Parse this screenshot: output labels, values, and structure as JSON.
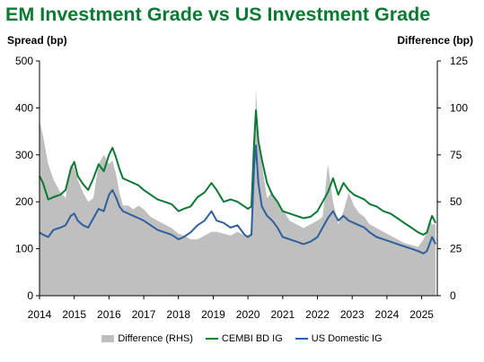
{
  "title": "EM Investment Grade vs US Investment Grade",
  "chart_data": {
    "type": "line",
    "title": "EM Investment Grade vs US Investment Grade",
    "ylabel": "Spread (bp)",
    "ylabel_right": "Difference (bp)",
    "ylim": [
      0,
      500
    ],
    "ylim_right": [
      0,
      125
    ],
    "yticks": [
      0,
      100,
      200,
      300,
      400,
      500
    ],
    "yticks_right": [
      0,
      25,
      50,
      75,
      100,
      125
    ],
    "xlim": [
      2014.0,
      2025.45
    ],
    "xtick_labels": [
      "2014",
      "2015",
      "2016",
      "2017",
      "2018",
      "2019",
      "2020",
      "2021",
      "2022",
      "2023",
      "2024",
      "2025"
    ],
    "grid": false,
    "legend_position": "bottom",
    "x": [
      2014.0,
      2014.1,
      2014.25,
      2014.4,
      2014.6,
      2014.75,
      2014.9,
      2015.0,
      2015.1,
      2015.25,
      2015.4,
      2015.55,
      2015.7,
      2015.85,
      2016.0,
      2016.1,
      2016.2,
      2016.3,
      2016.4,
      2016.55,
      2016.7,
      2016.85,
      2017.0,
      2017.2,
      2017.4,
      2017.6,
      2017.8,
      2018.0,
      2018.15,
      2018.35,
      2018.55,
      2018.75,
      2018.95,
      2019.1,
      2019.3,
      2019.5,
      2019.7,
      2019.9,
      2020.0,
      2020.1,
      2020.18,
      2020.23,
      2020.3,
      2020.4,
      2020.55,
      2020.7,
      2020.85,
      2021.0,
      2021.2,
      2021.4,
      2021.6,
      2021.8,
      2022.0,
      2022.15,
      2022.3,
      2022.45,
      2022.6,
      2022.75,
      2022.9,
      2023.05,
      2023.2,
      2023.35,
      2023.5,
      2023.7,
      2023.9,
      2024.1,
      2024.3,
      2024.5,
      2024.7,
      2024.9,
      2025.05,
      2025.15,
      2025.25,
      2025.3,
      2025.4
    ],
    "series": [
      {
        "name": "Difference (RHS)",
        "axis": "right",
        "color": "#bfbfbf",
        "values": [
          93,
          85,
          70,
          62,
          55,
          52,
          70,
          68,
          62,
          55,
          50,
          52,
          70,
          75,
          70,
          72,
          65,
          55,
          48,
          48,
          46,
          48,
          46,
          42,
          40,
          38,
          36,
          33,
          32,
          30,
          30,
          32,
          34,
          34,
          33,
          32,
          34,
          32,
          32,
          34,
          65,
          110,
          85,
          70,
          52,
          55,
          50,
          46,
          40,
          38,
          36,
          38,
          40,
          42,
          70,
          50,
          38,
          45,
          55,
          48,
          44,
          42,
          38,
          36,
          34,
          32,
          30,
          28,
          27,
          26,
          30,
          34,
          40,
          38,
          38
        ]
      },
      {
        "name": "CEMBI BD IG",
        "axis": "left",
        "color": "#0a7a33",
        "values": [
          255,
          240,
          205,
          210,
          215,
          225,
          270,
          285,
          255,
          238,
          225,
          250,
          280,
          265,
          300,
          315,
          295,
          270,
          250,
          245,
          240,
          235,
          225,
          215,
          205,
          200,
          195,
          180,
          185,
          190,
          210,
          220,
          240,
          225,
          200,
          205,
          200,
          190,
          185,
          190,
          330,
          395,
          330,
          290,
          240,
          215,
          200,
          180,
          175,
          170,
          165,
          168,
          180,
          200,
          220,
          250,
          215,
          240,
          225,
          215,
          210,
          205,
          195,
          190,
          180,
          175,
          165,
          155,
          145,
          135,
          130,
          135,
          160,
          170,
          155
        ]
      },
      {
        "name": "US Domestic IG",
        "axis": "left",
        "color": "#2e5f9e",
        "values": [
          135,
          130,
          125,
          140,
          145,
          150,
          170,
          175,
          160,
          150,
          145,
          165,
          185,
          180,
          215,
          225,
          210,
          190,
          180,
          175,
          170,
          165,
          160,
          150,
          140,
          135,
          130,
          120,
          125,
          135,
          150,
          160,
          180,
          160,
          155,
          145,
          150,
          130,
          125,
          130,
          280,
          320,
          240,
          190,
          170,
          160,
          145,
          125,
          120,
          115,
          110,
          115,
          125,
          145,
          165,
          180,
          160,
          170,
          160,
          155,
          150,
          145,
          135,
          125,
          120,
          115,
          110,
          105,
          100,
          95,
          90,
          95,
          115,
          125,
          110
        ]
      }
    ]
  }
}
